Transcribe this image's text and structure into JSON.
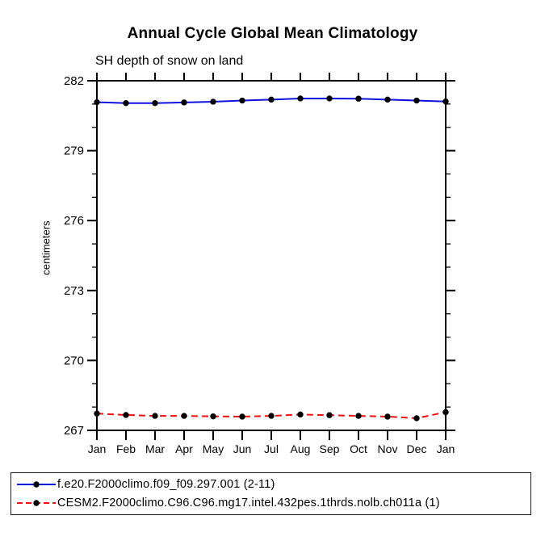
{
  "title": "Annual Cycle Global Mean Climatology",
  "subtitle": "SH depth of snow on land",
  "chart_data": {
    "type": "line",
    "categories": [
      "Jan",
      "Feb",
      "Mar",
      "Apr",
      "May",
      "Jun",
      "Jul",
      "Aug",
      "Sep",
      "Oct",
      "Nov",
      "Dec",
      "Jan"
    ],
    "series": [
      {
        "name": "f.e20.F2000climo.f09_f09.297.001 (2-11)",
        "color": "#1010dd",
        "line_style": "solid",
        "marker": "black-dot",
        "values": [
          281.08,
          281.04,
          281.04,
          281.07,
          281.1,
          281.15,
          281.19,
          281.24,
          281.24,
          281.23,
          281.19,
          281.15,
          281.11
        ]
      },
      {
        "name": "CESM2.F2000climo.C96.C96.mg17.intel.432pes.1thrds.nolb.ch011a (1)",
        "color": "#ee1111",
        "line_style": "dashed",
        "marker": "black-dot",
        "values": [
          267.72,
          267.66,
          267.62,
          267.62,
          267.6,
          267.59,
          267.62,
          267.68,
          267.65,
          267.62,
          267.59,
          267.52,
          267.78
        ]
      }
    ],
    "xlabel": "",
    "ylabel": "centimeters",
    "ylim": [
      267,
      282
    ],
    "yticks_major": [
      267,
      270,
      273,
      276,
      279,
      282
    ],
    "ytick_minor_step": 1,
    "grid": false,
    "legend_position": "bottom",
    "axis_color": "#000000",
    "marker_color": "#000000",
    "background_color": "#ffffff"
  }
}
